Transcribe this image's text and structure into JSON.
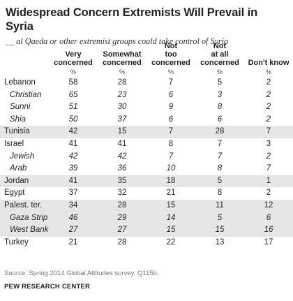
{
  "title": "Widespread Concern Extremists Will Prevail in Syria",
  "subtitle": "__ al Qaeda or other extremist groups could take control of Syria",
  "source": "Source: Spring 2014 Global Attitudes survey. Q115b.",
  "brand": "PEW RESEARCH CENTER",
  "chart_data": {
    "type": "table",
    "columns": [
      "Very concerned",
      "Somewhat concerned",
      "Not too concerned",
      "Not at all concerned",
      "Don't know"
    ],
    "unit_row": [
      "%",
      "%",
      "%",
      "%",
      "%"
    ],
    "rows": [
      {
        "label": "Lebanon",
        "sub": false,
        "shaded": false,
        "values": [
          "58",
          "28",
          "7",
          "5",
          "2"
        ]
      },
      {
        "label": "Christian",
        "sub": true,
        "shaded": false,
        "values": [
          "65",
          "23",
          "6",
          "3",
          "2"
        ]
      },
      {
        "label": "Sunni",
        "sub": true,
        "shaded": false,
        "values": [
          "51",
          "30",
          "9",
          "8",
          "2"
        ]
      },
      {
        "label": "Shia",
        "sub": true,
        "shaded": false,
        "values": [
          "50",
          "37",
          "6",
          "6",
          "2"
        ]
      },
      {
        "label": "Tunisia",
        "sub": false,
        "shaded": true,
        "values": [
          "42",
          "15",
          "7",
          "28",
          "7"
        ]
      },
      {
        "label": "Israel",
        "sub": false,
        "shaded": false,
        "values": [
          "41",
          "41",
          "8",
          "7",
          "3"
        ]
      },
      {
        "label": "Jewish",
        "sub": true,
        "shaded": false,
        "values": [
          "42",
          "42",
          "7",
          "7",
          "2"
        ]
      },
      {
        "label": "Arab",
        "sub": true,
        "shaded": false,
        "values": [
          "39",
          "36",
          "10",
          "8",
          "7"
        ]
      },
      {
        "label": "Jordan",
        "sub": false,
        "shaded": true,
        "values": [
          "41",
          "35",
          "18",
          "5",
          "1"
        ]
      },
      {
        "label": "Egypt",
        "sub": false,
        "shaded": false,
        "values": [
          "37",
          "32",
          "21",
          "8",
          "2"
        ]
      },
      {
        "label": "Palest. ter.",
        "sub": false,
        "shaded": true,
        "values": [
          "34",
          "28",
          "15",
          "11",
          "12"
        ]
      },
      {
        "label": "Gaza Strip",
        "sub": true,
        "shaded": true,
        "values": [
          "46",
          "29",
          "14",
          "5",
          "6"
        ]
      },
      {
        "label": "West Bank",
        "sub": true,
        "shaded": true,
        "values": [
          "27",
          "27",
          "15",
          "15",
          "16"
        ]
      },
      {
        "label": "Turkey",
        "sub": false,
        "shaded": false,
        "values": [
          "21",
          "28",
          "22",
          "13",
          "17"
        ]
      }
    ]
  }
}
